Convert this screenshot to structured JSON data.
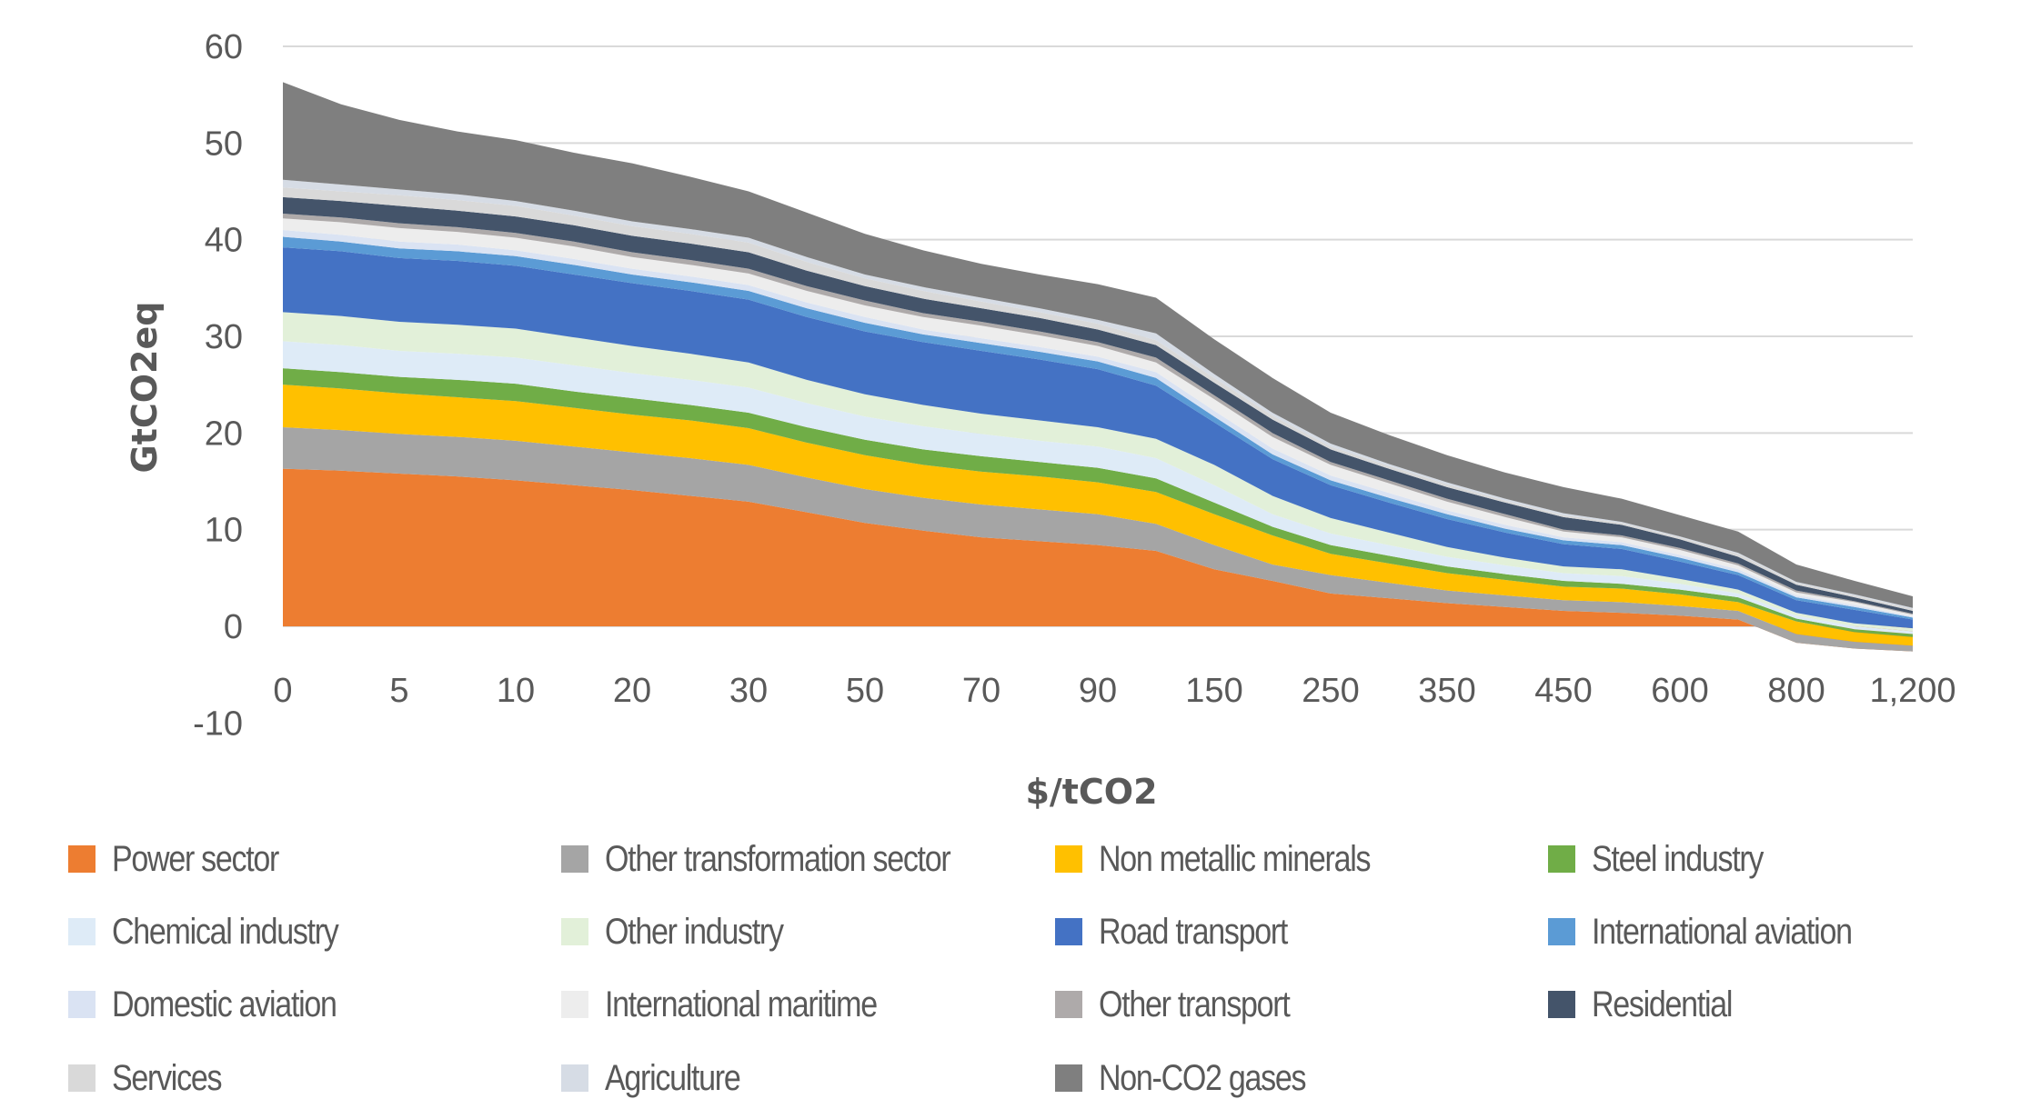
{
  "chart_data": {
    "type": "area",
    "stacked": true,
    "xlabel": "$/tCO2",
    "ylabel": "GtCO2eq",
    "ylim": [
      -10,
      60
    ],
    "yticks": [
      60,
      50,
      40,
      30,
      20,
      10,
      0,
      -10
    ],
    "ytick_labels": [
      "60",
      "50",
      "40",
      "30",
      "20",
      "10",
      "0",
      "-10"
    ],
    "grid": true,
    "legend_position": "bottom",
    "categories": [
      "0",
      "",
      "5",
      "",
      "10",
      "",
      "20",
      "",
      "30",
      "",
      "50",
      "",
      "70",
      "",
      "90",
      "",
      "150",
      "",
      "250",
      "",
      "350",
      "",
      "450",
      "",
      "600",
      "",
      "800",
      "",
      "1,200"
    ],
    "series": [
      {
        "name": "Power sector",
        "color": "#ED7D31",
        "values": [
          16.3,
          16.1,
          15.8,
          15.5,
          15.1,
          14.6,
          14.1,
          13.5,
          12.9,
          11.8,
          10.7,
          9.9,
          9.2,
          8.8,
          8.4,
          7.8,
          5.9,
          4.7,
          3.4,
          2.9,
          2.4,
          2.0,
          1.6,
          1.4,
          1.1,
          0.7,
          -1.7,
          -2.3,
          -2.6
        ]
      },
      {
        "name": "Other transformation sector",
        "color": "#A5A5A5",
        "values": [
          4.3,
          4.2,
          4.1,
          4.1,
          4.1,
          4.0,
          3.9,
          3.9,
          3.8,
          3.6,
          3.5,
          3.4,
          3.4,
          3.3,
          3.2,
          2.8,
          2.5,
          1.7,
          1.9,
          1.6,
          1.3,
          1.2,
          1.1,
          1.1,
          1.0,
          0.9,
          0.9,
          0.7,
          0.6
        ]
      },
      {
        "name": "Non metallic minerals",
        "color": "#FFC000",
        "values": [
          4.4,
          4.3,
          4.2,
          4.1,
          4.1,
          4.0,
          3.9,
          3.9,
          3.8,
          3.6,
          3.5,
          3.4,
          3.4,
          3.4,
          3.3,
          3.3,
          3.2,
          3.0,
          2.2,
          2.0,
          1.8,
          1.6,
          1.4,
          1.4,
          1.2,
          0.9,
          1.3,
          1.0,
          0.9
        ]
      },
      {
        "name": "Steel industry",
        "color": "#70AD47",
        "values": [
          1.7,
          1.7,
          1.7,
          1.8,
          1.8,
          1.7,
          1.7,
          1.6,
          1.6,
          1.6,
          1.6,
          1.6,
          1.6,
          1.5,
          1.5,
          1.4,
          1.2,
          0.9,
          0.9,
          0.8,
          0.7,
          0.6,
          0.6,
          0.5,
          0.5,
          0.5,
          0.3,
          0.3,
          0.3
        ]
      },
      {
        "name": "Chemical industry",
        "color": "#DEEBF7",
        "values": [
          2.8,
          2.8,
          2.7,
          2.7,
          2.7,
          2.7,
          2.6,
          2.6,
          2.6,
          2.5,
          2.4,
          2.4,
          2.3,
          2.2,
          2.2,
          2.1,
          1.8,
          1.3,
          1.2,
          1.1,
          1.0,
          0.9,
          0.8,
          0.8,
          0.6,
          0.4,
          0.3,
          0.3,
          0.3
        ]
      },
      {
        "name": "Other industry",
        "color": "#E2F0D9",
        "values": [
          3.0,
          3.0,
          3.0,
          3.0,
          3.0,
          2.9,
          2.8,
          2.7,
          2.6,
          2.4,
          2.3,
          2.2,
          2.1,
          2.1,
          2.0,
          2.0,
          2.1,
          1.9,
          1.6,
          1.3,
          1.0,
          0.8,
          0.7,
          0.7,
          0.5,
          0.4,
          0.3,
          0.3,
          0.3
        ]
      },
      {
        "name": "Road transport",
        "color": "#4472C4",
        "values": [
          6.7,
          6.7,
          6.6,
          6.6,
          6.5,
          6.5,
          6.5,
          6.5,
          6.5,
          6.5,
          6.5,
          6.5,
          6.5,
          6.3,
          6.0,
          5.5,
          4.4,
          3.8,
          3.4,
          3.1,
          2.9,
          2.6,
          2.3,
          2.1,
          1.8,
          1.5,
          1.3,
          1.4,
          0.9
        ]
      },
      {
        "name": "International aviation",
        "color": "#5B9BD5",
        "values": [
          1.1,
          1.0,
          1.0,
          1.0,
          1.0,
          1.0,
          0.9,
          0.9,
          0.9,
          0.9,
          0.9,
          0.8,
          0.8,
          0.8,
          0.8,
          0.8,
          0.6,
          0.5,
          0.5,
          0.5,
          0.5,
          0.4,
          0.4,
          0.4,
          0.4,
          0.3,
          0.3,
          0.3,
          0.2
        ]
      },
      {
        "name": "Domestic aviation",
        "color": "#DAE3F3",
        "values": [
          0.7,
          0.7,
          0.7,
          0.7,
          0.6,
          0.6,
          0.6,
          0.6,
          0.6,
          0.6,
          0.6,
          0.5,
          0.5,
          0.5,
          0.5,
          0.6,
          0.6,
          0.6,
          0.5,
          0.5,
          0.4,
          0.4,
          0.3,
          0.3,
          0.3,
          0.3,
          0.2,
          0.2,
          0.1
        ]
      },
      {
        "name": "International maritime",
        "color": "#EDEDED",
        "values": [
          1.2,
          1.3,
          1.4,
          1.3,
          1.3,
          1.3,
          1.2,
          1.2,
          1.2,
          1.2,
          1.2,
          1.3,
          1.3,
          1.2,
          1.1,
          1.0,
          1.2,
          1.2,
          1.1,
          1.0,
          0.9,
          0.8,
          0.6,
          0.5,
          0.5,
          0.4,
          0.3,
          0.3,
          0.2
        ]
      },
      {
        "name": "Other transport",
        "color": "#AEAAAA",
        "values": [
          0.5,
          0.5,
          0.5,
          0.5,
          0.5,
          0.5,
          0.5,
          0.5,
          0.5,
          0.5,
          0.5,
          0.4,
          0.4,
          0.4,
          0.4,
          0.5,
          0.4,
          0.4,
          0.3,
          0.3,
          0.3,
          0.3,
          0.2,
          0.2,
          0.2,
          0.2,
          0.2,
          0.1,
          0.1
        ]
      },
      {
        "name": "Residential",
        "color": "#44546A",
        "values": [
          1.7,
          1.7,
          1.8,
          1.7,
          1.7,
          1.7,
          1.7,
          1.7,
          1.7,
          1.6,
          1.5,
          1.5,
          1.4,
          1.4,
          1.3,
          1.3,
          1.3,
          1.4,
          1.3,
          1.2,
          1.2,
          1.2,
          1.3,
          1.1,
          0.9,
          0.7,
          0.6,
          0.4,
          0.3
        ]
      },
      {
        "name": "Services",
        "color": "#D9D9D9",
        "values": [
          1.0,
          1.0,
          1.1,
          1.1,
          1.1,
          1.0,
          1.0,
          1.0,
          1.0,
          0.9,
          0.8,
          0.8,
          0.7,
          0.6,
          0.6,
          0.5,
          0.5,
          0.4,
          0.3,
          0.3,
          0.3,
          0.2,
          0.2,
          0.2,
          0.2,
          0.3,
          0.2,
          0.2,
          0.2
        ]
      },
      {
        "name": "Agriculture",
        "color": "#D6DCE5",
        "values": [
          0.8,
          0.7,
          0.6,
          0.6,
          0.5,
          0.5,
          0.5,
          0.5,
          0.5,
          0.5,
          0.4,
          0.4,
          0.4,
          0.4,
          0.4,
          0.7,
          0.4,
          0.3,
          0.3,
          0.2,
          0.2,
          0.2,
          0.2,
          0.1,
          0.1,
          0.1,
          0.1,
          0.1,
          0.1
        ]
      },
      {
        "name": "Non-CO2 gases",
        "color": "#7F7F7F",
        "values": [
          10.1,
          8.3,
          7.2,
          6.5,
          6.3,
          6.0,
          6.0,
          5.4,
          4.8,
          4.6,
          4.2,
          3.8,
          3.5,
          3.5,
          3.7,
          3.7,
          3.6,
          3.6,
          3.2,
          3.0,
          2.8,
          2.7,
          2.7,
          2.4,
          2.2,
          2.2,
          1.8,
          1.4,
          1.2
        ]
      }
    ]
  }
}
